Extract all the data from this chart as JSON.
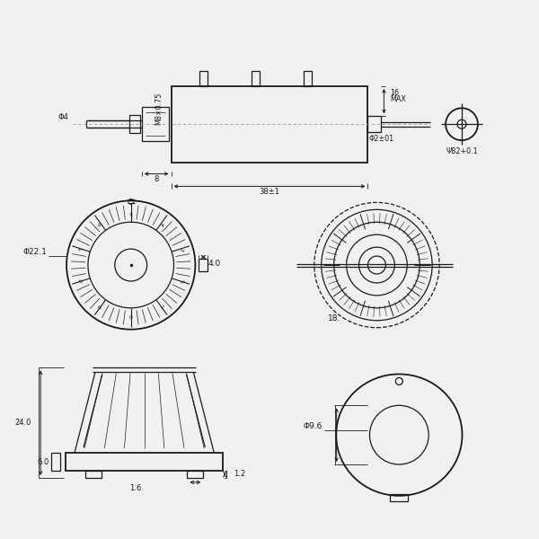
{
  "bg_color": "#f0f0f0",
  "line_color": "#1a1a1a",
  "dim_color": "#1a1a1a",
  "fig_width": 6.0,
  "fig_height": 6.0,
  "annotations": {
    "M8_075": "M8×0.75",
    "phi4": "Φ4",
    "dim8": "8",
    "dim38": "38±1",
    "dim16": "16",
    "MAX": "MAX",
    "phi2": "Φ2±01",
    "phi82": "Ψ82+0.1",
    "phi22": "Φ22.1",
    "dim4": "4.0",
    "dim18": "18.",
    "dim24": "24.0",
    "dim60": "6.0",
    "dim12": "1.2",
    "dim16b": "1.6",
    "phi96": "Φ9.6"
  }
}
